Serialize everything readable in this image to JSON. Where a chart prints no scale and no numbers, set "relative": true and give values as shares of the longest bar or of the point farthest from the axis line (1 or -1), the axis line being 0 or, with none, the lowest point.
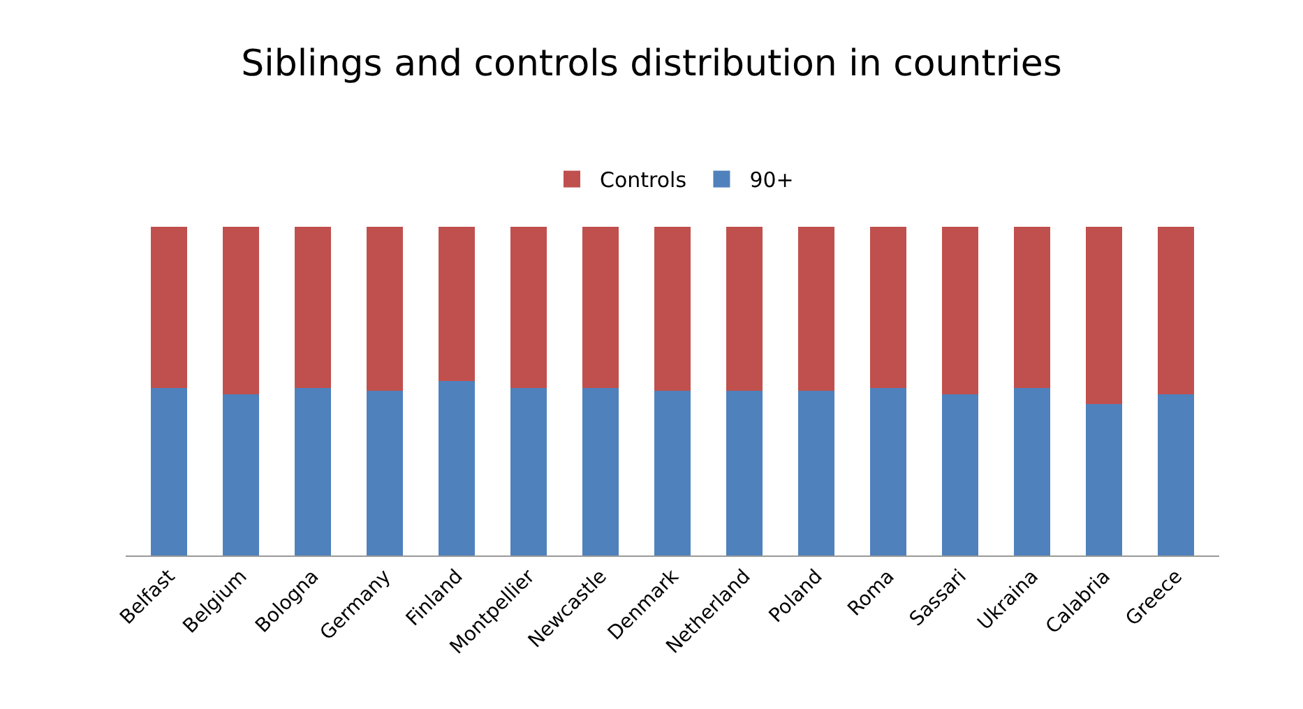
{
  "chart_data": {
    "type": "bar",
    "title": "Siblings and controls distribution in countries",
    "categories": [
      "Belfast",
      "Belgium",
      "Bologna",
      "Germany",
      "Finland",
      "Montpellier",
      "Newcastle",
      "Denmark",
      "Netherland",
      "Poland",
      "Roma",
      "Sassari",
      "Ukraina",
      "Calabria",
      "Greece"
    ],
    "stacked": true,
    "relative": true,
    "legend": "top",
    "series": [
      {
        "name": "90+",
        "color": "#4f81bd",
        "values": [
          0.51,
          0.49,
          0.51,
          0.5,
          0.53,
          0.51,
          0.51,
          0.5,
          0.5,
          0.5,
          0.51,
          0.49,
          0.51,
          0.46,
          0.49
        ]
      },
      {
        "name": "Controls",
        "color": "#c0504d",
        "values": [
          0.49,
          0.51,
          0.49,
          0.5,
          0.47,
          0.49,
          0.49,
          0.5,
          0.5,
          0.5,
          0.49,
          0.51,
          0.49,
          0.54,
          0.51
        ]
      }
    ]
  }
}
